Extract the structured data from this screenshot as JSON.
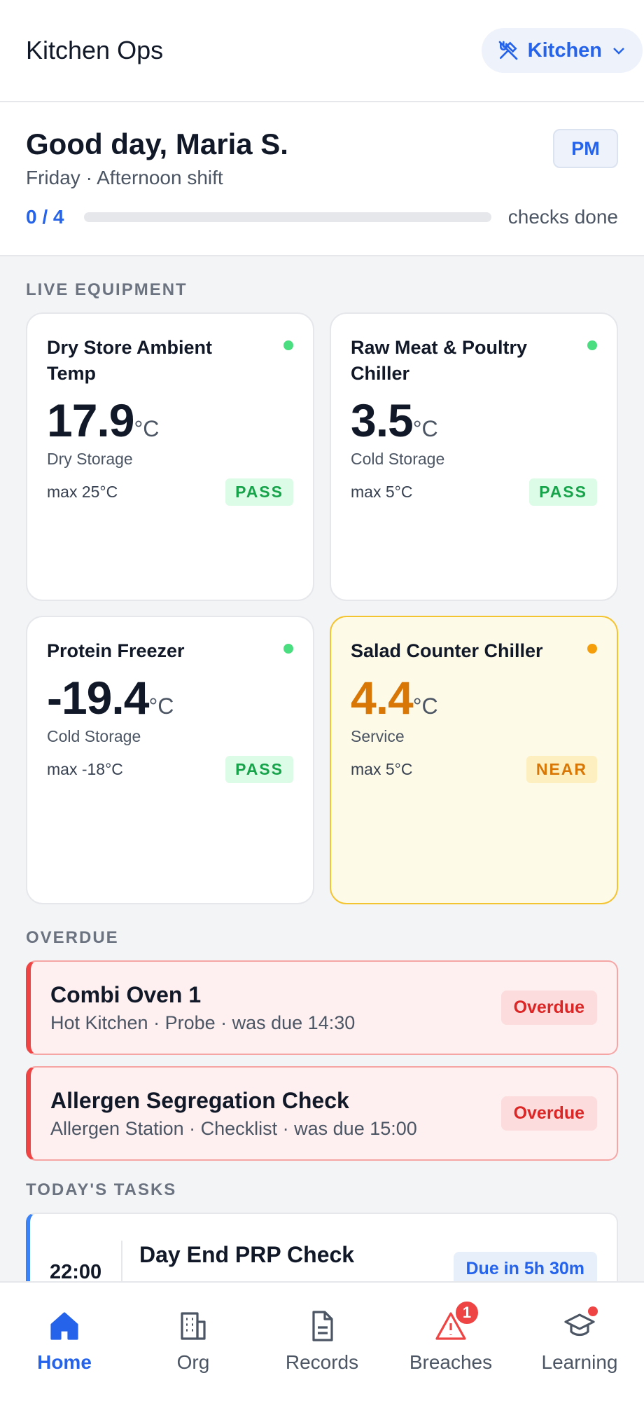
{
  "header": {
    "title": "Kitchen Ops",
    "location": "Kitchen"
  },
  "greeting": {
    "title": "Good day, Maria S.",
    "subtitle": "Friday · Afternoon shift",
    "shift": "PM",
    "progress": "0 / 4",
    "progress_label": "checks done"
  },
  "equipment": {
    "label": "LIVE EQUIPMENT",
    "cards": [
      {
        "name": "Dry Store Ambient Temp",
        "temp": "17.9",
        "unit": "°C",
        "area": "Dry Storage",
        "max": "max 25°C",
        "status": "PASS",
        "state": "pass"
      },
      {
        "name": "Raw Meat & Poultry Chiller",
        "temp": "3.5",
        "unit": "°C",
        "area": "Cold Storage",
        "max": "max 5°C",
        "status": "PASS",
        "state": "pass"
      },
      {
        "name": "Protein Freezer",
        "temp": "-19.4",
        "unit": "°C",
        "area": "Cold Storage",
        "max": "max -18°C",
        "status": "PASS",
        "state": "pass"
      },
      {
        "name": "Salad Counter Chiller",
        "temp": "4.4",
        "unit": "°C",
        "area": "Service",
        "max": "max 5°C",
        "status": "NEAR",
        "state": "near"
      }
    ]
  },
  "overdue": {
    "label": "OVERDUE",
    "items": [
      {
        "title": "Combi Oven 1",
        "detail": "Hot Kitchen · Probe · was due 14:30",
        "badge": "Overdue"
      },
      {
        "title": "Allergen Segregation Check",
        "detail": "Allergen Station · Checklist · was due 15:00",
        "badge": "Overdue"
      }
    ]
  },
  "tasks": {
    "label": "TODAY'S TASKS",
    "items": [
      {
        "time": "22:00",
        "title": "Day End PRP Check",
        "badge": "Due in 5h 30m"
      }
    ]
  },
  "nav": {
    "items": [
      "Home",
      "Org",
      "Records",
      "Breaches",
      "Learning"
    ],
    "breaches_count": "1"
  }
}
